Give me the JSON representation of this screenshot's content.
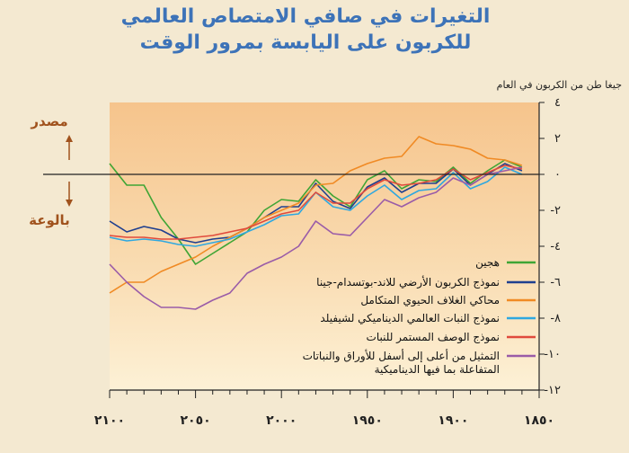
{
  "title_line1": "التغيرات في صافي الامتصاص العالمي",
  "title_line2": "للكربون على اليابسة بمرور الوقت",
  "y_axis_label": "جيغا طن من الكربون في العام",
  "source_label": "مصدر",
  "sink_label": "بالوعة",
  "chart_data": {
    "type": "line",
    "title": "التغيرات في صافي الامتصاص العالمي للكربون على اليابسة بمرور الوقت",
    "ylabel": "جيغا طن من الكربون في العام",
    "xlabel": "",
    "xlim": [
      2100,
      1850
    ],
    "ylim": [
      -12,
      4
    ],
    "x_ticks": [
      2100,
      2050,
      2000,
      1950,
      1900,
      1850
    ],
    "x_tick_labels": [
      "٢١٠٠",
      "٢٠٥٠",
      "٢٠٠٠",
      "١٩٥٠",
      "١٩٠٠",
      "١٨٥٠"
    ],
    "y_ticks": [
      4,
      2,
      0,
      -2,
      -4,
      -6,
      -8,
      -10,
      -12
    ],
    "y_tick_labels": [
      "٤",
      "٢",
      "٠",
      "-٢",
      "-٤",
      "-٦",
      "-٨",
      "-١٠",
      "-١٢"
    ],
    "grid": false,
    "legend_position": "lower-middle",
    "series": [
      {
        "name": "هجين",
        "color": "#3fa535",
        "x": [
          1860,
          1870,
          1880,
          1890,
          1900,
          1910,
          1920,
          1930,
          1940,
          1950,
          1960,
          1970,
          1980,
          1990,
          2000,
          2010,
          2020,
          2030,
          2040,
          2050,
          2060,
          2070,
          2080,
          2090,
          2100
        ],
        "y": [
          0.4,
          0.8,
          0.2,
          -0.5,
          0.4,
          -0.4,
          -0.3,
          -0.8,
          0.2,
          -0.3,
          -1.8,
          -1.2,
          -0.3,
          -1.5,
          -1.4,
          -2.0,
          -3.2,
          -3.8,
          -4.4,
          -5.0,
          -3.6,
          -2.4,
          -0.6,
          -0.6,
          0.6
        ]
      },
      {
        "name": "نموذج الكربون الأرضي للاند-بوتسدام-جينا",
        "color": "#1f3f8f",
        "x": [
          1860,
          1870,
          1880,
          1890,
          1900,
          1910,
          1920,
          1930,
          1940,
          1950,
          1960,
          1970,
          1980,
          1990,
          2000,
          2010,
          2020,
          2030,
          2040,
          2050,
          2060,
          2070,
          2080,
          2090,
          2100
        ],
        "y": [
          0.2,
          0.6,
          0.0,
          -0.6,
          0.3,
          -0.5,
          -0.5,
          -1.0,
          -0.2,
          -0.7,
          -1.9,
          -1.5,
          -0.5,
          -1.8,
          -1.8,
          -2.4,
          -3.0,
          -3.5,
          -3.6,
          -3.8,
          -3.6,
          -3.1,
          -2.9,
          -3.2,
          -2.6
        ]
      },
      {
        "name": "محاكي الغلاف الحيوي المتكامل",
        "color": "#f08a24",
        "x": [
          1860,
          1870,
          1880,
          1890,
          1900,
          1910,
          1920,
          1930,
          1940,
          1950,
          1960,
          1970,
          1980,
          1990,
          2000,
          2010,
          2020,
          2030,
          2040,
          2050,
          2060,
          2070,
          2080,
          2090,
          2100
        ],
        "y": [
          0.5,
          0.8,
          0.9,
          1.4,
          1.6,
          1.7,
          2.1,
          1.0,
          0.9,
          0.6,
          0.2,
          -0.5,
          -0.6,
          -1.6,
          -2.0,
          -2.4,
          -3.0,
          -3.5,
          -4.0,
          -4.6,
          -5.0,
          -5.4,
          -6.0,
          -6.0,
          -6.6
        ]
      },
      {
        "name": "نموذج النبات العالمي الديناميكي لشيفيلد",
        "color": "#2fa8e0",
        "x": [
          1860,
          1870,
          1880,
          1890,
          1900,
          1910,
          1920,
          1930,
          1940,
          1950,
          1960,
          1970,
          1980,
          1990,
          2000,
          2010,
          2020,
          2030,
          2040,
          2050,
          2060,
          2070,
          2080,
          2090,
          2100
        ],
        "y": [
          0.0,
          0.4,
          -0.4,
          -0.8,
          0.1,
          -0.8,
          -0.9,
          -1.4,
          -0.6,
          -1.2,
          -2.0,
          -1.8,
          -1.0,
          -2.2,
          -2.3,
          -2.8,
          -3.2,
          -3.6,
          -3.8,
          -4.0,
          -3.9,
          -3.7,
          -3.6,
          -3.7,
          -3.5
        ]
      },
      {
        "name": "نموذج الوصف المستمر للنبات",
        "color": "#e04a3c",
        "x": [
          1860,
          1870,
          1880,
          1890,
          1900,
          1910,
          1920,
          1930,
          1940,
          1950,
          1960,
          1970,
          1980,
          1990,
          2000,
          2010,
          2020,
          2030,
          2040,
          2050,
          2060,
          2070,
          2080,
          2090,
          2100
        ],
        "y": [
          0.3,
          0.5,
          0.1,
          -0.3,
          0.3,
          -0.3,
          -0.5,
          -0.6,
          -0.3,
          -0.8,
          -1.6,
          -1.6,
          -1.0,
          -2.0,
          -2.2,
          -2.6,
          -3.0,
          -3.2,
          -3.4,
          -3.5,
          -3.6,
          -3.6,
          -3.5,
          -3.5,
          -3.4
        ]
      },
      {
        "name": "التمثيل من أعلى إلى أسفل للأوراق والنباتات المتفاعلة بما فيها الديناميكية",
        "color": "#9a5ca8",
        "x": [
          1860,
          1870,
          1880,
          1890,
          1900,
          1910,
          1920,
          1930,
          1940,
          1950,
          1960,
          1970,
          1980,
          1990,
          2000,
          2010,
          2020,
          2030,
          2040,
          2050,
          2060,
          2070,
          2080,
          2090,
          2100
        ],
        "y": [
          0.4,
          0.2,
          0.0,
          -0.6,
          -0.2,
          -1.0,
          -1.3,
          -1.8,
          -1.4,
          -2.4,
          -3.4,
          -3.3,
          -2.6,
          -4.0,
          -4.6,
          -5.0,
          -5.5,
          -6.6,
          -7.0,
          -7.5,
          -7.4,
          -7.4,
          -6.8,
          -6.0,
          -5.0
        ]
      }
    ]
  }
}
